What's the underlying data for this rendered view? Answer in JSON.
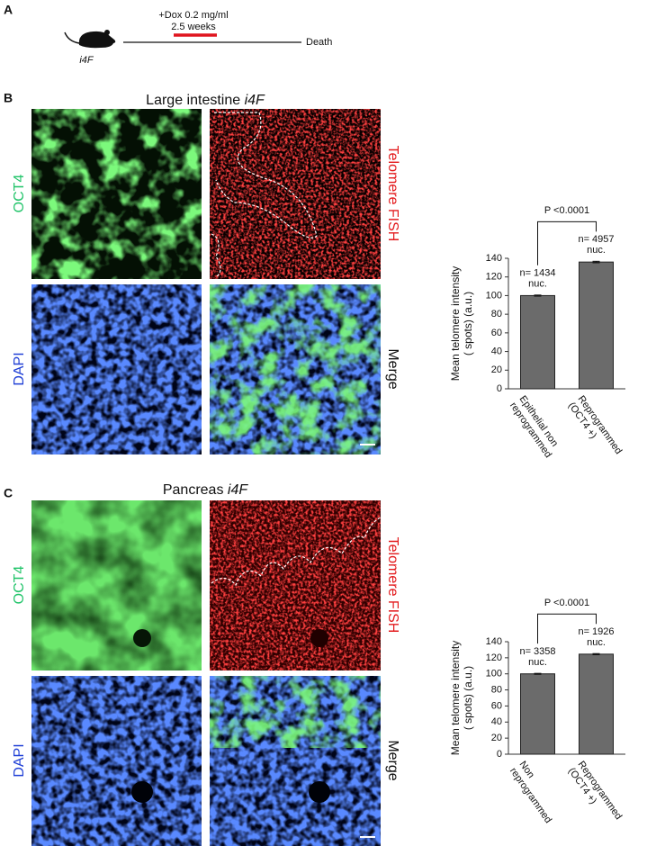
{
  "figure": {
    "panel_a": {
      "label": "A",
      "treatment": "+Dox 0.2 mg/ml",
      "duration": "2.5 weeks",
      "mouse": "i4F",
      "endpoint": "Death"
    },
    "panel_b": {
      "label": "B",
      "tissue": "Large intestine",
      "genotype": "i4F",
      "channels": [
        "OCT4",
        "Telomere FISH",
        "DAPI",
        "Merge"
      ]
    },
    "panel_c": {
      "label": "C",
      "tissue": "Pancreas",
      "genotype": "i4F",
      "channels": [
        "OCT4",
        "Telomere FISH",
        "DAPI",
        "Merge"
      ]
    }
  },
  "chart_data": [
    {
      "type": "bar",
      "ylabel": [
        "Mean telomere intensity",
        "( spots) (a.u.)"
      ],
      "categories": [
        [
          "Epithelial non",
          "reprogrammed"
        ],
        [
          "Reprogrammed",
          "(OCT4 +)"
        ]
      ],
      "values": [
        100,
        136
      ],
      "errors": [
        0.6,
        0.8
      ],
      "color": "#6b6b6b",
      "ylim": [
        0,
        140
      ],
      "yticks": [
        0,
        20,
        40,
        60,
        80,
        100,
        120,
        140
      ],
      "n_labels": [
        [
          "n= 1434",
          "nuc."
        ],
        [
          "n= 4957",
          "nuc."
        ]
      ],
      "significance": "P <0.0001"
    },
    {
      "type": "bar",
      "ylabel": [
        "Mean telomere intensity",
        "( spots) (a.u.)"
      ],
      "categories": [
        [
          "Non",
          "reprogrammed"
        ],
        [
          "Reprogrammed",
          "(OCT4 +)"
        ]
      ],
      "values": [
        100,
        124.5
      ],
      "errors": [
        0.6,
        0.7
      ],
      "color": "#6b6b6b",
      "ylim": [
        0,
        140
      ],
      "yticks": [
        0,
        20,
        40,
        60,
        80,
        100,
        120,
        140
      ],
      "n_labels": [
        [
          "n= 3358",
          "nuc."
        ],
        [
          "n= 1926",
          "nuc."
        ]
      ],
      "significance": "P <0.0001"
    }
  ]
}
